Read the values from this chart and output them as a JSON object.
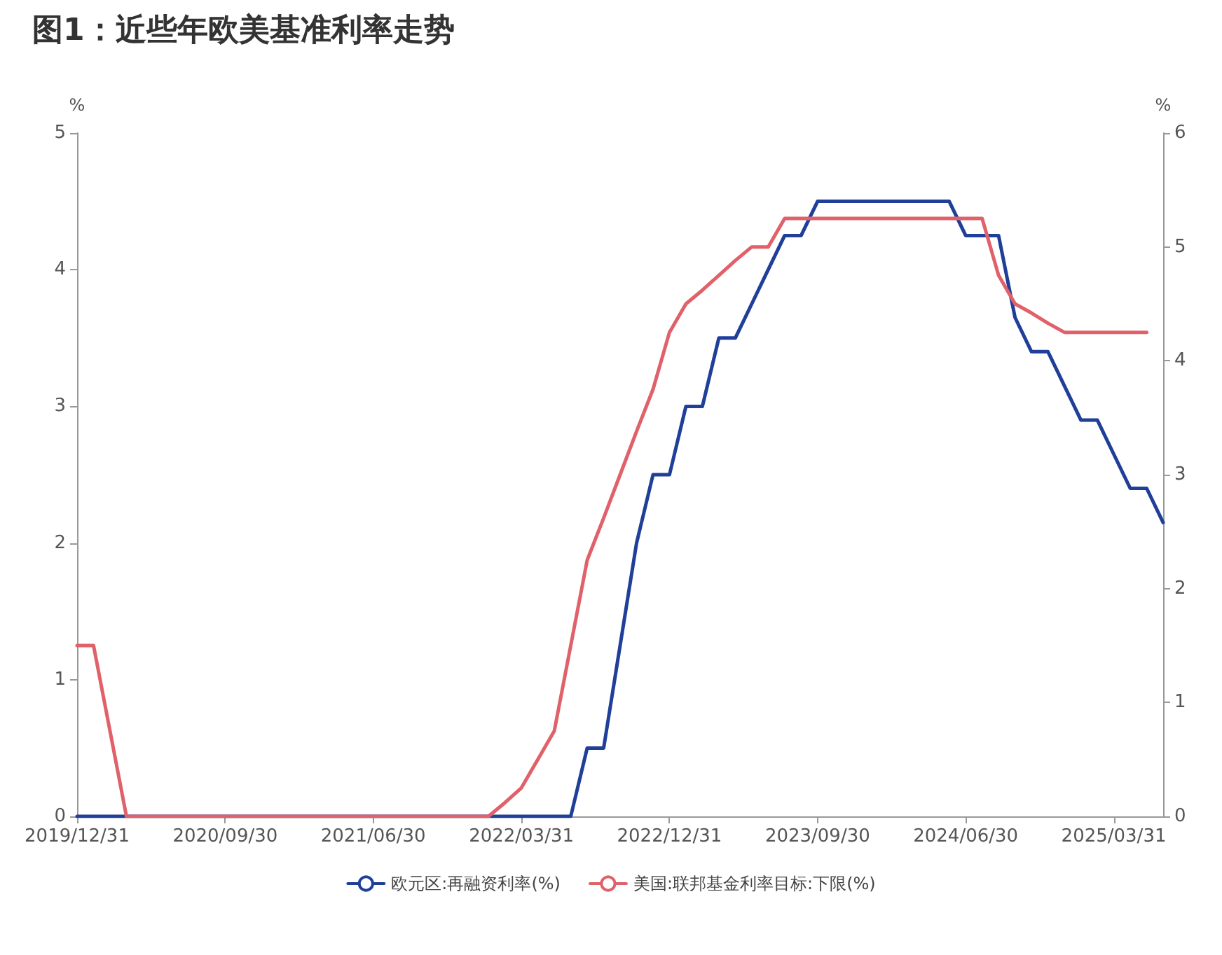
{
  "chart_data": {
    "type": "line",
    "title": "图1：近些年欧美基准利率走势",
    "categories": [
      "2019/12/31",
      null,
      null,
      null,
      null,
      null,
      null,
      null,
      null,
      "2020/09/30",
      null,
      null,
      null,
      null,
      null,
      null,
      null,
      null,
      "2021/06/30",
      null,
      null,
      null,
      null,
      null,
      null,
      null,
      null,
      "2022/03/31",
      null,
      null,
      null,
      null,
      null,
      null,
      null,
      null,
      "2022/12/31",
      null,
      null,
      null,
      null,
      null,
      null,
      null,
      null,
      "2023/09/30",
      null,
      null,
      null,
      null,
      null,
      null,
      null,
      null,
      "2024/06/30",
      null,
      null,
      null,
      null,
      null,
      null,
      null,
      null,
      "2025/03/31",
      null,
      null,
      null
    ],
    "ylabel": "%",
    "y2label": "%",
    "ylim": [
      0,
      5
    ],
    "yticks": [
      0,
      1,
      2,
      3,
      4,
      5
    ],
    "y2lim": [
      0,
      6
    ],
    "y2ticks": [
      0,
      1,
      2,
      3,
      4,
      5,
      6
    ],
    "series": [
      {
        "name": "欧元区:再融资利率(%)",
        "color": "#1f3f99",
        "values": [
          0,
          0,
          0,
          0,
          0,
          0,
          0,
          0,
          0,
          0,
          0,
          0,
          0,
          0,
          0,
          0,
          0,
          0,
          0,
          0,
          0,
          0,
          0,
          0,
          0,
          0,
          0,
          0,
          0,
          0,
          0,
          0.5,
          0.5,
          1.25,
          2.0,
          2.5,
          2.5,
          3.0,
          3.0,
          3.5,
          3.5,
          3.75,
          4.0,
          4.25,
          4.25,
          4.5,
          4.5,
          4.5,
          4.5,
          4.5,
          4.5,
          4.5,
          4.5,
          4.5,
          4.25,
          4.25,
          4.25,
          3.65,
          3.4,
          3.4,
          3.15,
          2.9,
          2.9,
          2.65,
          2.4,
          2.4,
          2.15
        ]
      },
      {
        "name": "美国:联邦基金利率目标:下限(%)",
        "color": "#e0616a",
        "axis": "y2",
        "values": [
          1.5,
          1.5,
          0.75,
          0,
          0,
          0,
          0,
          0,
          0,
          0,
          0,
          0,
          0,
          0,
          0,
          0,
          0,
          0,
          0,
          0,
          0,
          0,
          0,
          0,
          0,
          0,
          0.12,
          0.25,
          0.5,
          0.75,
          1.5,
          2.25,
          2.62,
          3.0,
          3.38,
          3.75,
          4.25,
          4.5,
          4.62,
          4.75,
          4.88,
          5.0,
          5.0,
          5.25,
          5.25,
          5.25,
          5.25,
          5.25,
          5.25,
          5.25,
          5.25,
          5.25,
          5.25,
          5.25,
          5.25,
          5.25,
          4.75,
          4.5,
          4.42,
          4.33,
          4.25,
          4.25,
          4.25,
          4.25,
          4.25,
          4.25,
          null
        ]
      }
    ],
    "legend": "bottom",
    "grid": false,
    "marker": "none",
    "line_style": "solid"
  }
}
